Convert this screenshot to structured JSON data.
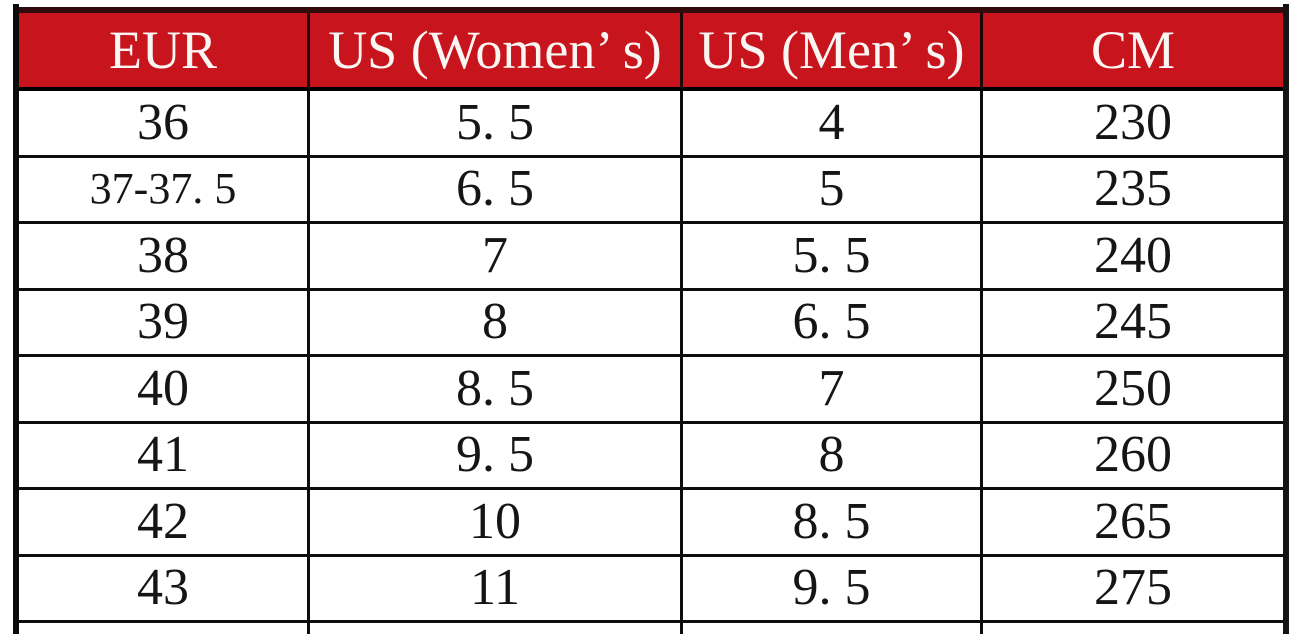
{
  "colors": {
    "header_bg": "#C8151D",
    "header_text": "#FAF6F4",
    "body_text": "#151515",
    "grid_line": "#0D0D0D"
  },
  "table": {
    "headers": [
      "EUR",
      "US (Women’ s)",
      "US (Men’ s)",
      "CM"
    ],
    "rows": [
      [
        "36",
        "5. 5",
        "4",
        "230"
      ],
      [
        "37-37. 5",
        "6. 5",
        "5",
        "235"
      ],
      [
        "38",
        "7",
        "5. 5",
        "240"
      ],
      [
        "39",
        "8",
        "6. 5",
        "245"
      ],
      [
        "40",
        "8. 5",
        "7",
        "250"
      ],
      [
        "41",
        "9. 5",
        "8",
        "260"
      ],
      [
        "42",
        "10",
        "8. 5",
        "265"
      ],
      [
        "43",
        "11",
        "9. 5",
        "275"
      ]
    ]
  },
  "chart_data": {
    "type": "table",
    "title": "",
    "columns": [
      "EUR",
      "US (Women's)",
      "US (Men's)",
      "CM"
    ],
    "rows": [
      [
        "36",
        5.5,
        4,
        230
      ],
      [
        "37-37.5",
        6.5,
        5,
        235
      ],
      [
        "38",
        7,
        5.5,
        240
      ],
      [
        "39",
        8,
        6.5,
        245
      ],
      [
        "40",
        8.5,
        7,
        250
      ],
      [
        "41",
        9.5,
        8,
        260
      ],
      [
        "42",
        10,
        8.5,
        265
      ],
      [
        "43",
        11,
        9.5,
        275
      ]
    ]
  }
}
